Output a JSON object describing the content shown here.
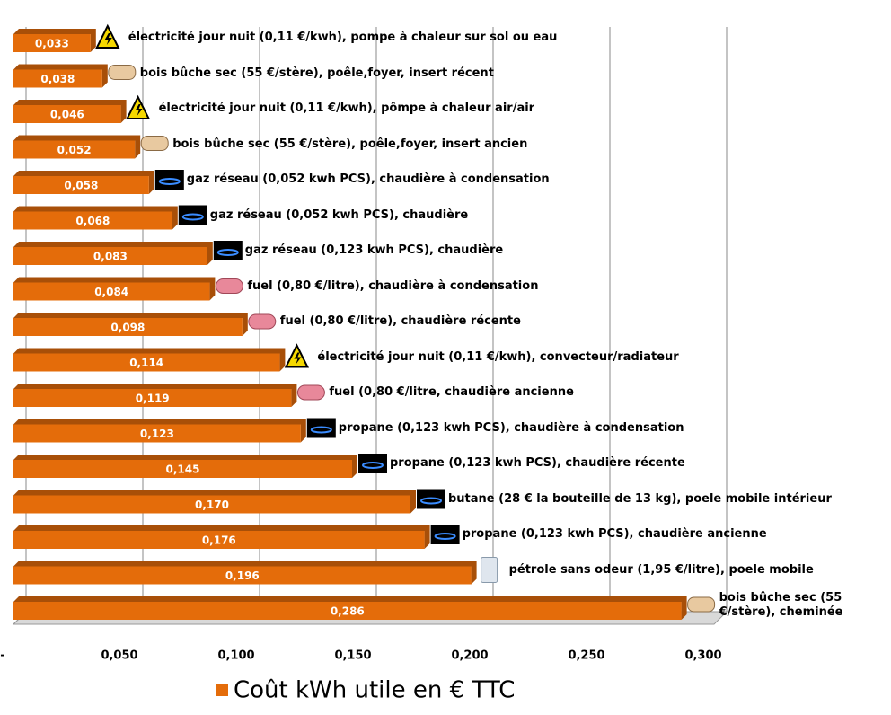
{
  "chart_data": {
    "type": "bar",
    "orientation": "horizontal",
    "categories": [
      "électricité jour nuit (0,11 €/kwh), pompe à chaleur sur sol ou eau",
      "bois bûche sec (55 €/stère), poêle,foyer, insert récent",
      "électricité jour nuit (0,11 €/kwh), pômpe à chaleur air/air",
      "bois bûche sec (55 €/stère), poêle,foyer, insert ancien",
      "gaz réseau (0,052 kwh PCS), chaudière à condensation",
      "gaz réseau (0,052 kwh PCS), chaudière",
      "gaz réseau (0,123 kwh PCS), chaudière",
      "fuel (0,80 €/litre), chaudière à condensation",
      "fuel (0,80 €/litre), chaudière récente",
      "électricité jour nuit (0,11 €/kwh), convecteur/radiateur",
      "fuel (0,80 €/litre, chaudière ancienne",
      "propane (0,123 kwh PCS), chaudière à condensation",
      "propane (0,123 kwh PCS), chaudière récente",
      "butane (28 € la bouteille de 13 kg), poele mobile intérieur",
      "propane (0,123 kwh PCS), chaudière ancienne",
      "pétrole sans odeur (1,95 €/litre), poele mobile",
      "bois bûche sec (55 €/stère), cheminée"
    ],
    "series": [
      {
        "name": "Coût kWh utile en € TTC",
        "color": "#e46c0a",
        "values": [
          0.033,
          0.038,
          0.046,
          0.052,
          0.058,
          0.068,
          0.083,
          0.084,
          0.098,
          0.114,
          0.119,
          0.123,
          0.145,
          0.17,
          0.176,
          0.196,
          0.286
        ],
        "value_labels": [
          "0,033",
          "0,038",
          "0,046",
          "0,052",
          "0,058",
          "0,068",
          "0,083",
          "0,084",
          "0,098",
          "0,114",
          "0,119",
          "0,123",
          "0,145",
          "0,170",
          "0,176",
          "0,196",
          "0,286"
        ]
      }
    ],
    "xlim": [
      0,
      0.3
    ],
    "xticks": [
      {
        "value": 0,
        "label": "-"
      },
      {
        "value": 0.05,
        "label": "0,050"
      },
      {
        "value": 0.1,
        "label": "0,100"
      },
      {
        "value": 0.15,
        "label": "0,150"
      },
      {
        "value": 0.2,
        "label": "0,200"
      },
      {
        "value": 0.25,
        "label": "0,250"
      },
      {
        "value": 0.3,
        "label": "0,300"
      }
    ],
    "grid": true,
    "legend": "bottom"
  }
}
